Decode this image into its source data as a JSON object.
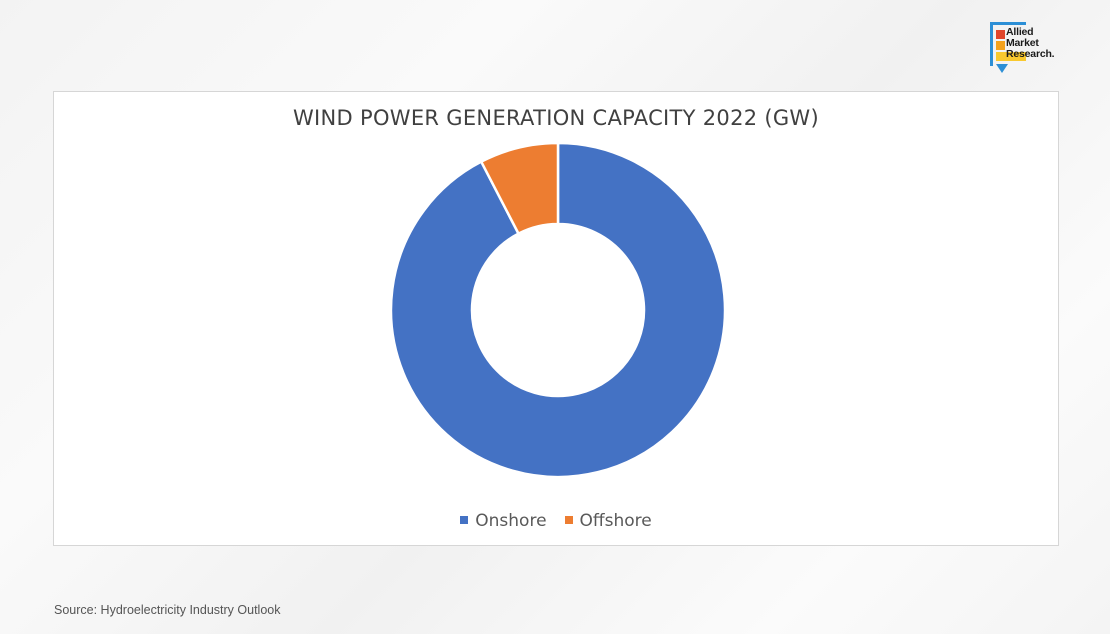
{
  "brand": {
    "logo_text": "Allied Market Research",
    "line1": "Allied",
    "line2": "Market",
    "line3": "Research.",
    "colors": [
      "#e0452b",
      "#f4a21d",
      "#f9c92f"
    ],
    "accent": "#2c8fd6"
  },
  "chart_data": {
    "type": "pie",
    "variant": "donut",
    "title": "WIND POWER GENERATION CAPACITY 2022 (GW)",
    "categories": [
      "Onshore",
      "Offshore"
    ],
    "values": [
      92.4,
      7.6
    ],
    "colors": [
      "#4472c4",
      "#ed7d31"
    ],
    "legend": "bottom"
  },
  "source": "Source: Hydroelectricity Industry Outlook"
}
